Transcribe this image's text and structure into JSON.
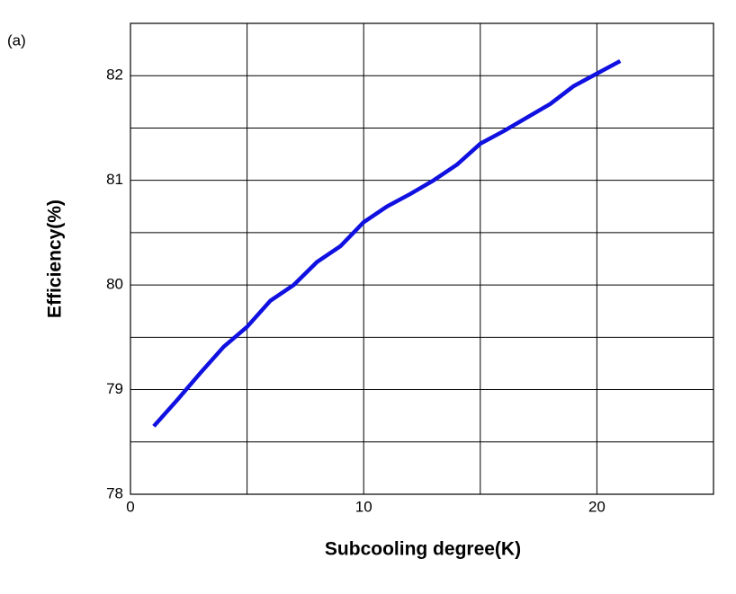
{
  "chart_data": {
    "type": "line",
    "annotation": "(a)",
    "x_label": "Subcooling degree(K)",
    "y_label": "Efficiency(%)",
    "x": [
      1,
      2,
      3,
      4,
      5,
      6,
      7,
      8,
      9,
      10,
      11,
      12,
      13,
      14,
      15,
      16,
      17,
      18,
      19,
      20,
      21
    ],
    "series": [
      {
        "color": "#1010e0",
        "values": [
          78.65,
          78.9,
          79.16,
          79.41,
          79.6,
          79.85,
          80.0,
          80.22,
          80.37,
          80.6,
          80.75,
          80.87,
          81.0,
          81.15,
          81.35,
          81.47,
          81.6,
          81.73,
          81.9,
          82.02,
          82.14
        ]
      }
    ],
    "xlim": [
      0,
      25
    ],
    "xticks": [
      0,
      10,
      20
    ],
    "x_minor_grid": [
      5,
      15
    ],
    "ylim": [
      78,
      82.5
    ],
    "yticks": [
      78,
      79,
      80,
      81,
      82
    ],
    "y_minor_grid": [
      78.5,
      79.5,
      80.5,
      81.5
    ],
    "grid": true
  }
}
